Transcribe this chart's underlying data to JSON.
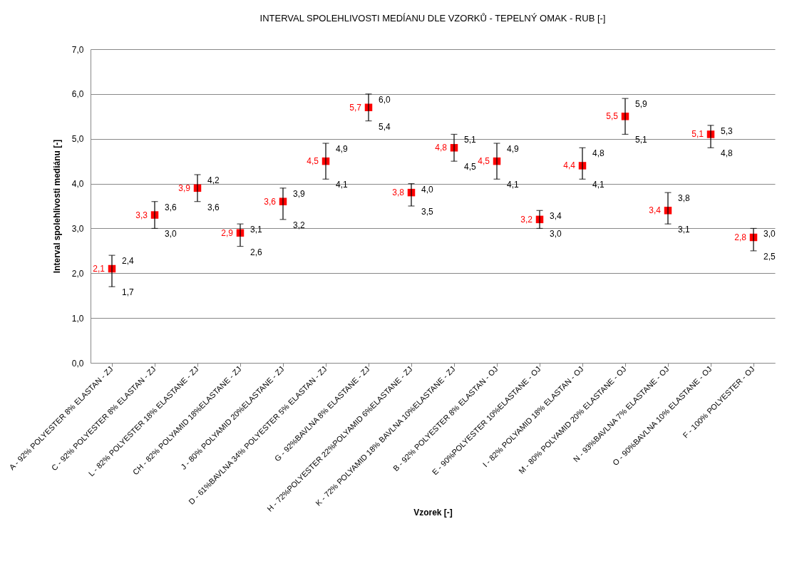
{
  "chart_data": {
    "type": "scatter",
    "title": "INTERVAL SPOLEHLIVOSTI MEDÍANU DLE VZORKŮ - TEPELNÝ OMAK - RUB [-]",
    "xlabel": "Vzorek [-]",
    "ylabel": "Interval spolehlivosti mediánu [-]",
    "categories": [
      "A - 92% POLYESTER 8% ELASTAN - ZJ",
      "C - 92% POLYESTER 8% ELASTAN - ZJ",
      "L - 82% POLYESTER 18% ELASTANE - ZJ",
      "CH - 82% POLYAMID 18%ELASTANE - ZJ",
      "J - 80% POLYAMID 20%ELASTANE - ZJ",
      "D - 61%BAVLNA 34% POLYESTER 5% ELASTAN - ZJ",
      "G - 92%BAVLNA 8% ELASTANE - ZJ",
      "H - 72%POLYESTER 22%POLYAMID 6%ELASTANE - ZJ",
      "K - 72% POLYAMID 18% BAVLNA 10%ELASTANE - ZJ",
      "B - 92% POLYESTER 8% ELASTAN - OJ",
      "E - 90%POLYESTER 10%ELASTANE - OJ",
      "I - 82% POLYAMID 18% ELASTAN - OJ",
      "M - 80% POLYAMID 20% ELASTANE - OJ",
      "N - 93%BAVLNA 7% ELASTANE - OJ",
      "O - 90%BAVLNA 10% ELASTANE - OJ",
      "F - 100% POLYESTER - OJ"
    ],
    "values": [
      2.1,
      3.3,
      3.9,
      2.9,
      3.6,
      4.5,
      5.7,
      3.8,
      4.8,
      4.5,
      3.2,
      4.4,
      5.5,
      3.4,
      5.1,
      2.8
    ],
    "value_labels": [
      "2,1",
      "3,3",
      "3,9",
      "2,9",
      "3,6",
      "4,5",
      "5,7",
      "3,8",
      "4,8",
      "4,5",
      "3,2",
      "4,4",
      "5,5",
      "3,4",
      "5,1",
      "2,8"
    ],
    "errors": [
      [
        1.7,
        2.4
      ],
      [
        3.0,
        3.6
      ],
      [
        3.6,
        4.2
      ],
      [
        2.6,
        3.1
      ],
      [
        3.2,
        3.9
      ],
      [
        4.1,
        4.9
      ],
      [
        5.4,
        6.0
      ],
      [
        3.5,
        4.0
      ],
      [
        4.5,
        5.1
      ],
      [
        4.1,
        4.9
      ],
      [
        3.0,
        3.4
      ],
      [
        4.1,
        4.8
      ],
      [
        5.1,
        5.9
      ],
      [
        3.1,
        3.8
      ],
      [
        4.8,
        5.3
      ],
      [
        2.5,
        3.0
      ]
    ],
    "color": "#ff0000",
    "marker": "square",
    "grid": "y",
    "ylim": [
      0,
      7
    ],
    "yticks": [
      {
        "value": 0,
        "label": "0,0"
      },
      {
        "value": 1,
        "label": "1,0"
      },
      {
        "value": 2,
        "label": "2,0"
      },
      {
        "value": 3,
        "label": "3,0"
      },
      {
        "value": 4,
        "label": "4,0"
      },
      {
        "value": 5,
        "label": "5,0"
      },
      {
        "value": 6,
        "label": "6,0"
      },
      {
        "value": 7,
        "label": "7,0"
      }
    ],
    "annotations": [
      {
        "text": "2,4",
        "x": "A - 92% POLYESTER 8% ELASTAN - ZJ",
        "y": 2.4
      },
      {
        "text": "1,7",
        "x": "A - 92% POLYESTER 8% ELASTAN - ZJ",
        "y": 1.7
      },
      {
        "text": "3,6",
        "x": "C - 92% POLYESTER 8% ELASTAN - ZJ",
        "y": 3.6
      },
      {
        "text": "3,0",
        "x": "C - 92% POLYESTER 8% ELASTAN - ZJ",
        "y": 3.0
      },
      {
        "text": "4,2",
        "x": "L - 82% POLYESTER 18% ELASTANE - ZJ",
        "y": 4.2
      },
      {
        "text": "3,6",
        "x": "L - 82% POLYESTER 18% ELASTANE - ZJ",
        "y": 3.6
      },
      {
        "text": "3,1",
        "x": "CH - 82% POLYAMID 18%ELASTANE - ZJ",
        "y": 3.1
      },
      {
        "text": "2,6",
        "x": "CH - 82% POLYAMID 18%ELASTANE - ZJ",
        "y": 2.6
      },
      {
        "text": "3,9",
        "x": "J - 80% POLYAMID 20%ELASTANE - ZJ",
        "y": 3.9
      },
      {
        "text": "3,2",
        "x": "J - 80% POLYAMID 20%ELASTANE - ZJ",
        "y": 3.2
      },
      {
        "text": "4,9",
        "x": "D - 61%BAVLNA 34% POLYESTER 5% ELASTAN - ZJ",
        "y": 4.9
      },
      {
        "text": "4,1",
        "x": "D - 61%BAVLNA 34% POLYESTER 5% ELASTAN - ZJ",
        "y": 4.1
      },
      {
        "text": "6,0",
        "x": "G - 92%BAVLNA 8% ELASTANE - ZJ",
        "y": 6.0
      },
      {
        "text": "5,4",
        "x": "G - 92%BAVLNA 8% ELASTANE - ZJ",
        "y": 5.4
      },
      {
        "text": "4,0",
        "x": "H - 72%POLYESTER 22%POLYAMID 6%ELASTANE - ZJ",
        "y": 4.0
      },
      {
        "text": "3,5",
        "x": "H - 72%POLYESTER 22%POLYAMID 6%ELASTANE - ZJ",
        "y": 3.5
      },
      {
        "text": "5,1",
        "x": "K - 72% POLYAMID 18% BAVLNA 10%ELASTANE - ZJ",
        "y": 5.1
      },
      {
        "text": "4,5",
        "x": "K - 72% POLYAMID 18% BAVLNA 10%ELASTANE - ZJ",
        "y": 4.5
      },
      {
        "text": "4,9",
        "x": "B - 92% POLYESTER 8% ELASTAN - OJ",
        "y": 4.9
      },
      {
        "text": "4,1",
        "x": "B - 92% POLYESTER 8% ELASTAN - OJ",
        "y": 4.1
      },
      {
        "text": "3,4",
        "x": "E - 90%POLYESTER 10%ELASTANE - OJ",
        "y": 3.4
      },
      {
        "text": "3,0",
        "x": "E - 90%POLYESTER 10%ELASTANE - OJ",
        "y": 3.0
      },
      {
        "text": "4,8",
        "x": "I - 82% POLYAMID 18% ELASTAN - OJ",
        "y": 4.8
      },
      {
        "text": "4,1",
        "x": "I - 82% POLYAMID 18% ELASTAN - OJ",
        "y": 4.1
      },
      {
        "text": "5,9",
        "x": "M - 80% POLYAMID 20% ELASTANE - OJ",
        "y": 5.9
      },
      {
        "text": "5,1",
        "x": "M - 80% POLYAMID 20% ELASTANE - OJ",
        "y": 5.1
      },
      {
        "text": "3,8",
        "x": "N - 93%BAVLNA 7% ELASTANE - OJ",
        "y": 3.8
      },
      {
        "text": "3,1",
        "x": "N - 93%BAVLNA 7% ELASTANE - OJ",
        "y": 3.1
      },
      {
        "text": "5,3",
        "x": "O - 90%BAVLNA 10% ELASTANE - OJ",
        "y": 5.3
      },
      {
        "text": "4,8",
        "x": "O - 90%BAVLNA 10% ELASTANE - OJ",
        "y": 4.8
      },
      {
        "text": "3,0",
        "x": "F - 100% POLYESTER - OJ",
        "y": 3.0
      },
      {
        "text": "2,5",
        "x": "F - 100% POLYESTER - OJ",
        "y": 2.5
      }
    ]
  }
}
